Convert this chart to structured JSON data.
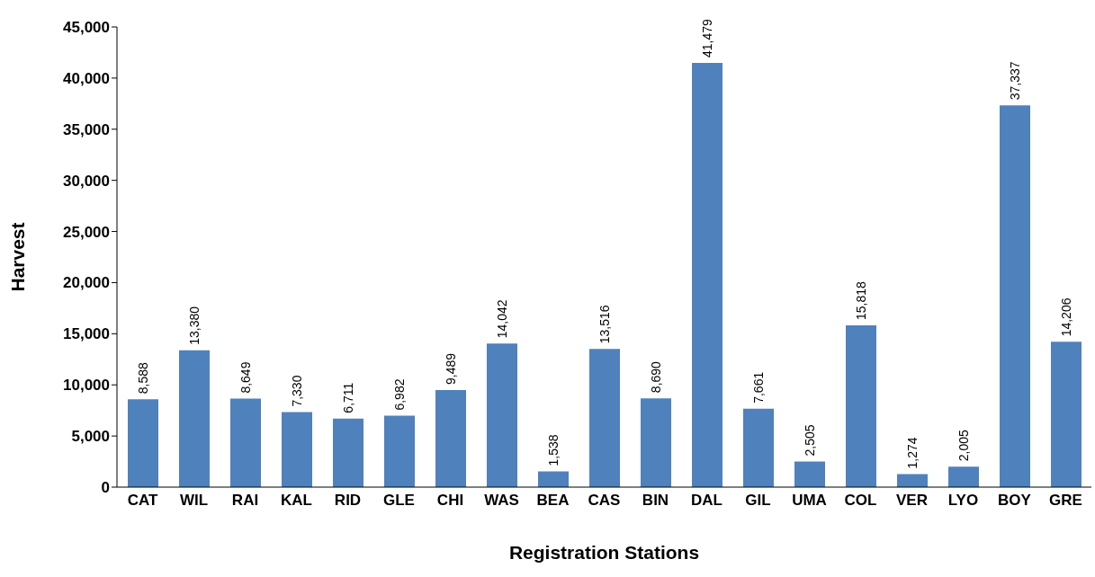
{
  "chart_data": {
    "type": "bar",
    "xlabel": "Registration Stations",
    "ylabel": "Harvest",
    "categories": [
      "CAT",
      "WIL",
      "RAI",
      "KAL",
      "RID",
      "GLE",
      "CHI",
      "WAS",
      "BEA",
      "CAS",
      "BIN",
      "DAL",
      "GIL",
      "UMA",
      "COL",
      "VER",
      "LYO",
      "BOY",
      "GRE"
    ],
    "values": [
      8588,
      13380,
      8649,
      7330,
      6711,
      6982,
      9489,
      14042,
      1538,
      13516,
      8690,
      41479,
      7661,
      2505,
      15818,
      1274,
      2005,
      37337,
      14206
    ],
    "value_labels": [
      "8,588",
      "13,380",
      "8,649",
      "7,330",
      "6,711",
      "6,982",
      "9,489",
      "14,042",
      "1,538",
      "13,516",
      "8,690",
      "41,479",
      "7,661",
      "2,505",
      "15,818",
      "1,274",
      "2,005",
      "37,337",
      "14,206"
    ],
    "color": "#4f81bd",
    "ylim": [
      0,
      45000
    ],
    "yticks": [
      0,
      {
        "value": 5000,
        "label": "5,000"
      },
      {
        "value": 10000,
        "label": "10,000"
      },
      {
        "value": 15000,
        "label": "15,000"
      },
      {
        "value": 20000,
        "label": "20,000"
      },
      {
        "value": 25000,
        "label": "25,000"
      },
      {
        "value": 30000,
        "label": "30,000"
      },
      {
        "value": 35000,
        "label": "35,000"
      },
      {
        "value": 40000,
        "label": "40,000"
      },
      {
        "value": 45000,
        "label": "45,000"
      }
    ]
  }
}
